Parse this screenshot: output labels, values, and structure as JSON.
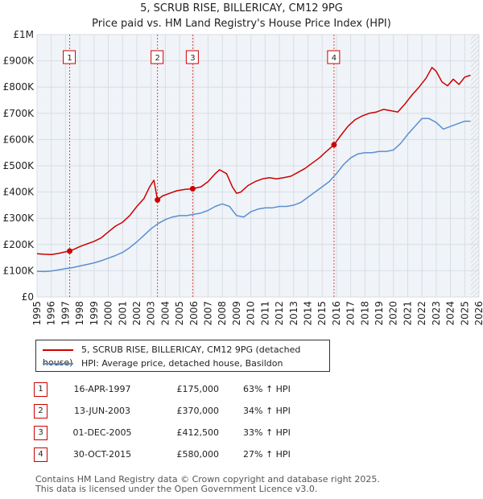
{
  "chart_data": {
    "type": "line",
    "title": "5, SCRUB RISE, BILLERICAY, CM12 9PG",
    "subtitle": "Price paid vs. HM Land Registry's House Price Index (HPI)",
    "xlim": [
      1995,
      2026
    ],
    "ylim": [
      0,
      1000000
    ],
    "x_ticks": [
      1995,
      1996,
      1997,
      1998,
      1999,
      2000,
      2001,
      2002,
      2003,
      2004,
      2005,
      2006,
      2007,
      2008,
      2009,
      2010,
      2011,
      2012,
      2013,
      2014,
      2015,
      2016,
      2017,
      2018,
      2019,
      2020,
      2021,
      2022,
      2023,
      2024,
      2025,
      2026
    ],
    "y_ticks": [
      {
        "value": 0,
        "label": "£0"
      },
      {
        "value": 100000,
        "label": "£100K"
      },
      {
        "value": 200000,
        "label": "£200K"
      },
      {
        "value": 300000,
        "label": "£300K"
      },
      {
        "value": 400000,
        "label": "£400K"
      },
      {
        "value": 500000,
        "label": "£500K"
      },
      {
        "value": 600000,
        "label": "£600K"
      },
      {
        "value": 700000,
        "label": "£700K"
      },
      {
        "value": 800000,
        "label": "£800K"
      },
      {
        "value": 900000,
        "label": "£900K"
      },
      {
        "value": 1000000,
        "label": "£1M"
      }
    ],
    "series": [
      {
        "name": "5, SCRUB RISE, BILLERICAY, CM12 9PG (detached house)",
        "color": "#cc0000",
        "x": [
          1995.0,
          1995.5,
          1996.0,
          1996.5,
          1997.0,
          1997.29,
          1997.6,
          1998.0,
          1998.5,
          1999.0,
          1999.5,
          2000.0,
          2000.5,
          2001.0,
          2001.5,
          2002.0,
          2002.5,
          2002.9,
          2003.2,
          2003.45,
          2003.8,
          2004.3,
          2004.8,
          2005.4,
          2005.92,
          2006.5,
          2007.0,
          2007.5,
          2007.8,
          2008.3,
          2008.7,
          2009.0,
          2009.3,
          2009.8,
          2010.3,
          2010.8,
          2011.3,
          2011.8,
          2012.3,
          2012.8,
          2013.3,
          2013.8,
          2014.3,
          2014.8,
          2015.3,
          2015.83,
          2016.3,
          2016.8,
          2017.3,
          2017.8,
          2018.3,
          2018.8,
          2019.3,
          2019.8,
          2020.3,
          2020.8,
          2021.3,
          2021.8,
          2022.3,
          2022.7,
          2023.0,
          2023.4,
          2023.8,
          2024.2,
          2024.6,
          2025.0,
          2025.4
        ],
        "y": [
          165000,
          163000,
          162000,
          166000,
          172000,
          175000,
          182000,
          192000,
          202000,
          212000,
          225000,
          248000,
          270000,
          285000,
          310000,
          345000,
          375000,
          420000,
          445000,
          370000,
          385000,
          395000,
          405000,
          410000,
          412500,
          420000,
          440000,
          470000,
          485000,
          470000,
          420000,
          395000,
          400000,
          425000,
          440000,
          450000,
          455000,
          450000,
          455000,
          460000,
          475000,
          490000,
          510000,
          530000,
          555000,
          580000,
          615000,
          650000,
          675000,
          690000,
          700000,
          705000,
          715000,
          710000,
          705000,
          735000,
          770000,
          800000,
          835000,
          875000,
          860000,
          820000,
          805000,
          830000,
          810000,
          838000,
          845000
        ]
      },
      {
        "name": "HPI: Average price, detached house, Basildon",
        "color": "#5b8fd0",
        "x": [
          1995.0,
          1995.5,
          1996.0,
          1996.5,
          1997.0,
          1997.5,
          1998.0,
          1998.5,
          1999.0,
          1999.5,
          2000.0,
          2000.5,
          2001.0,
          2001.5,
          2002.0,
          2002.5,
          2003.0,
          2003.5,
          2004.0,
          2004.5,
          2005.0,
          2005.5,
          2006.0,
          2006.5,
          2007.0,
          2007.5,
          2008.0,
          2008.5,
          2009.0,
          2009.5,
          2010.0,
          2010.5,
          2011.0,
          2011.5,
          2012.0,
          2012.5,
          2013.0,
          2013.5,
          2014.0,
          2014.5,
          2015.0,
          2015.5,
          2016.0,
          2016.5,
          2017.0,
          2017.5,
          2018.0,
          2018.5,
          2019.0,
          2019.5,
          2020.0,
          2020.5,
          2021.0,
          2021.5,
          2022.0,
          2022.5,
          2023.0,
          2023.5,
          2024.0,
          2024.5,
          2025.0,
          2025.4
        ],
        "y": [
          98000,
          97000,
          99000,
          103000,
          108000,
          112000,
          118000,
          124000,
          130000,
          138000,
          148000,
          158000,
          170000,
          188000,
          210000,
          235000,
          260000,
          280000,
          295000,
          305000,
          310000,
          310000,
          315000,
          320000,
          330000,
          345000,
          355000,
          345000,
          310000,
          305000,
          325000,
          335000,
          340000,
          340000,
          345000,
          345000,
          350000,
          360000,
          380000,
          400000,
          420000,
          440000,
          470000,
          505000,
          530000,
          545000,
          550000,
          550000,
          555000,
          555000,
          560000,
          585000,
          620000,
          650000,
          680000,
          680000,
          665000,
          640000,
          650000,
          660000,
          670000,
          670000
        ]
      }
    ],
    "sales": [
      {
        "id": "1",
        "x": 1997.29,
        "y": 175000
      },
      {
        "id": "2",
        "x": 2003.45,
        "y": 370000
      },
      {
        "id": "3",
        "x": 2005.92,
        "y": 412500
      },
      {
        "id": "4",
        "x": 2015.83,
        "y": 580000
      }
    ]
  },
  "legend": {
    "property_label": "5, SCRUB RISE, BILLERICAY, CM12 9PG (detached house)",
    "hpi_label": "HPI: Average price, detached house, Basildon",
    "property_color": "#cc0000",
    "hpi_color": "#5b8fd0"
  },
  "transactions": [
    {
      "id": "1",
      "date": "16-APR-1997",
      "price": "£175,000",
      "change": "63% ↑ HPI"
    },
    {
      "id": "2",
      "date": "13-JUN-2003",
      "price": "£370,000",
      "change": "34% ↑ HPI"
    },
    {
      "id": "3",
      "date": "01-DEC-2005",
      "price": "£412,500",
      "change": "33% ↑ HPI"
    },
    {
      "id": "4",
      "date": "30-OCT-2015",
      "price": "£580,000",
      "change": "27% ↑ HPI"
    }
  ],
  "footer": {
    "line1": "Contains HM Land Registry data © Crown copyright and database right 2025.",
    "line2": "This data is licensed under the Open Government Licence v3.0."
  }
}
